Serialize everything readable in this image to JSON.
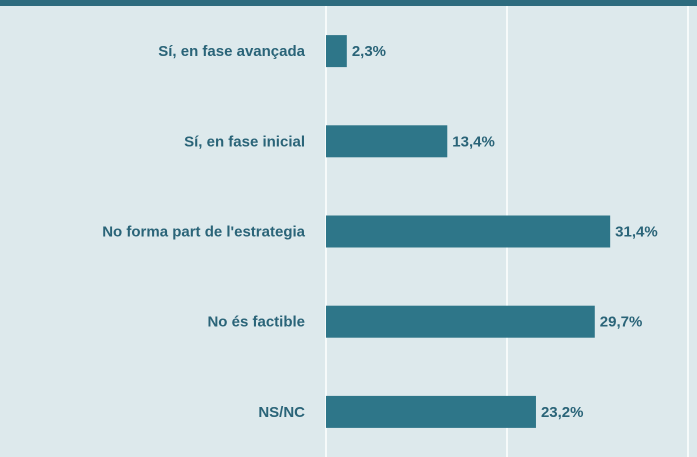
{
  "chart_data": {
    "type": "bar",
    "orientation": "horizontal",
    "categories": [
      "Sí, en fase avançada",
      "Sí, en fase inicial",
      "No forma part de l'estrategia",
      "No és factible",
      "NS/NC"
    ],
    "values": [
      2.3,
      13.4,
      31.4,
      29.7,
      23.2
    ],
    "value_labels": [
      "2,3%",
      "13,4%",
      "31,4%",
      "29,7%",
      "23,2%"
    ],
    "color": "#2e7689",
    "xlim": [
      0,
      40
    ],
    "xticks": [
      0,
      20,
      40
    ],
    "grid": true
  }
}
